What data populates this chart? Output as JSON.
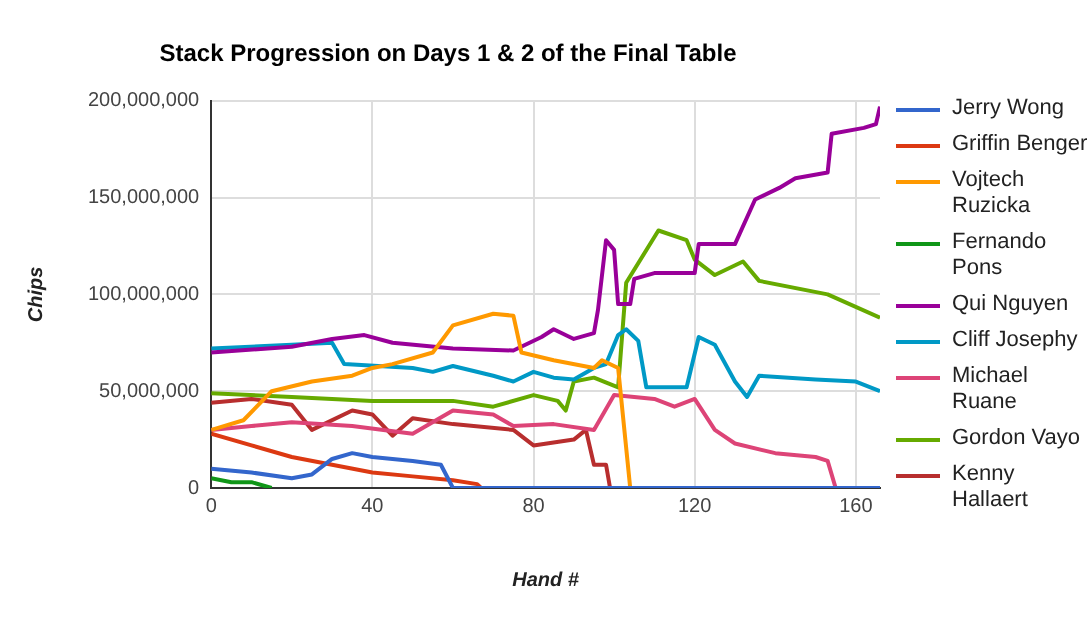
{
  "chart_data": {
    "type": "line",
    "title": "Stack Progression on Days 1 & 2 of the Final Table",
    "xlabel": "Hand #",
    "ylabel": "Chips",
    "xlim": [
      0,
      166
    ],
    "xticks": [
      0,
      40,
      80,
      120,
      160
    ],
    "ylim": [
      0,
      200000000
    ],
    "yticks": [
      0,
      {
        "value": 50000000,
        "label": "50,000,000"
      },
      {
        "value": 100000000,
        "label": "100,000,000"
      },
      {
        "value": 150000000,
        "label": "150,000,000"
      },
      {
        "value": 200000000,
        "label": "200,000,000"
      }
    ],
    "grid": true,
    "legend": "right",
    "marker": "none",
    "line_style": "solid",
    "series": [
      {
        "name": "Jerry Wong",
        "color": "#3366cc",
        "x": [
          0,
          10,
          20,
          25,
          30,
          35,
          40,
          50,
          57,
          60,
          166
        ],
        "values": [
          10000000,
          8000000,
          5000000,
          7000000,
          15000000,
          18000000,
          16000000,
          14000000,
          12000000,
          0,
          0
        ]
      },
      {
        "name": "Griffin Benger",
        "color": "#dc3912",
        "x": [
          0,
          10,
          20,
          30,
          40,
          50,
          60,
          66,
          67
        ],
        "values": [
          28000000,
          22000000,
          16000000,
          12000000,
          8000000,
          6000000,
          4000000,
          2000000,
          0
        ]
      },
      {
        "name": "Vojtech Ruzicka",
        "color": "#ff9900",
        "x": [
          0,
          8,
          15,
          25,
          35,
          40,
          45,
          55,
          60,
          70,
          75,
          77,
          85,
          95,
          97,
          101,
          104,
          166
        ],
        "values": [
          30000000,
          35000000,
          50000000,
          55000000,
          58000000,
          62000000,
          64000000,
          70000000,
          84000000,
          90000000,
          89000000,
          70000000,
          66000000,
          62000000,
          66000000,
          62000000,
          0,
          0
        ]
      },
      {
        "name": "Fernando Pons",
        "color": "#109618",
        "x": [
          0,
          5,
          10,
          15
        ],
        "values": [
          5000000,
          3000000,
          3000000,
          0
        ]
      },
      {
        "name": "Qui Nguyen",
        "color": "#990099",
        "x": [
          0,
          20,
          30,
          38,
          45,
          60,
          75,
          82,
          85,
          90,
          95,
          96,
          98,
          100,
          101,
          104,
          105,
          110,
          120,
          121,
          130,
          135,
          141,
          145,
          153,
          154,
          162,
          165,
          166
        ],
        "values": [
          70000000,
          73000000,
          77000000,
          79000000,
          75000000,
          72000000,
          71000000,
          78000000,
          82000000,
          77000000,
          80000000,
          92000000,
          128000000,
          123000000,
          95000000,
          95000000,
          108000000,
          111000000,
          111000000,
          126000000,
          126000000,
          149000000,
          155000000,
          160000000,
          163000000,
          183000000,
          186000000,
          188000000,
          197000000
        ]
      },
      {
        "name": "Cliff Josephy",
        "color": "#0099c6",
        "x": [
          0,
          20,
          30,
          33,
          50,
          55,
          60,
          70,
          75,
          80,
          85,
          90,
          95,
          98,
          101,
          103,
          106,
          108,
          118,
          121,
          125,
          130,
          133,
          136,
          150,
          160,
          166
        ],
        "values": [
          72000000,
          74000000,
          75000000,
          64000000,
          62000000,
          60000000,
          63000000,
          58000000,
          55000000,
          60000000,
          57000000,
          56000000,
          62000000,
          64000000,
          79000000,
          82000000,
          76000000,
          52000000,
          52000000,
          78000000,
          74000000,
          55000000,
          47000000,
          58000000,
          56000000,
          55000000,
          50000000
        ]
      },
      {
        "name": "Michael Ruane",
        "color": "#dd4477",
        "x": [
          0,
          10,
          20,
          35,
          50,
          60,
          70,
          75,
          85,
          95,
          100,
          110,
          115,
          120,
          125,
          130,
          140,
          150,
          153,
          155,
          166
        ],
        "values": [
          30000000,
          32000000,
          34000000,
          32000000,
          28000000,
          40000000,
          38000000,
          32000000,
          33000000,
          30000000,
          48000000,
          46000000,
          42000000,
          46000000,
          30000000,
          23000000,
          18000000,
          16000000,
          14000000,
          0,
          0
        ]
      },
      {
        "name": "Gordon Vayo",
        "color": "#66aa00",
        "x": [
          0,
          20,
          40,
          60,
          70,
          80,
          86,
          88,
          90,
          95,
          101,
          103,
          111,
          118,
          120,
          125,
          132,
          136,
          153,
          166
        ],
        "values": [
          49000000,
          47000000,
          45000000,
          45000000,
          42000000,
          48000000,
          45000000,
          40000000,
          55000000,
          57000000,
          52000000,
          106000000,
          133000000,
          128000000,
          118000000,
          110000000,
          117000000,
          107000000,
          100000000,
          88000000
        ]
      },
      {
        "name": "Kenny Hallaert",
        "color": "#b82e2e",
        "x": [
          0,
          10,
          20,
          25,
          35,
          40,
          45,
          50,
          60,
          75,
          80,
          90,
          93,
          95,
          98,
          99,
          166
        ],
        "values": [
          44000000,
          46000000,
          43000000,
          30000000,
          40000000,
          38000000,
          27000000,
          36000000,
          33000000,
          30000000,
          22000000,
          25000000,
          30000000,
          12000000,
          12000000,
          0,
          0
        ]
      }
    ]
  }
}
